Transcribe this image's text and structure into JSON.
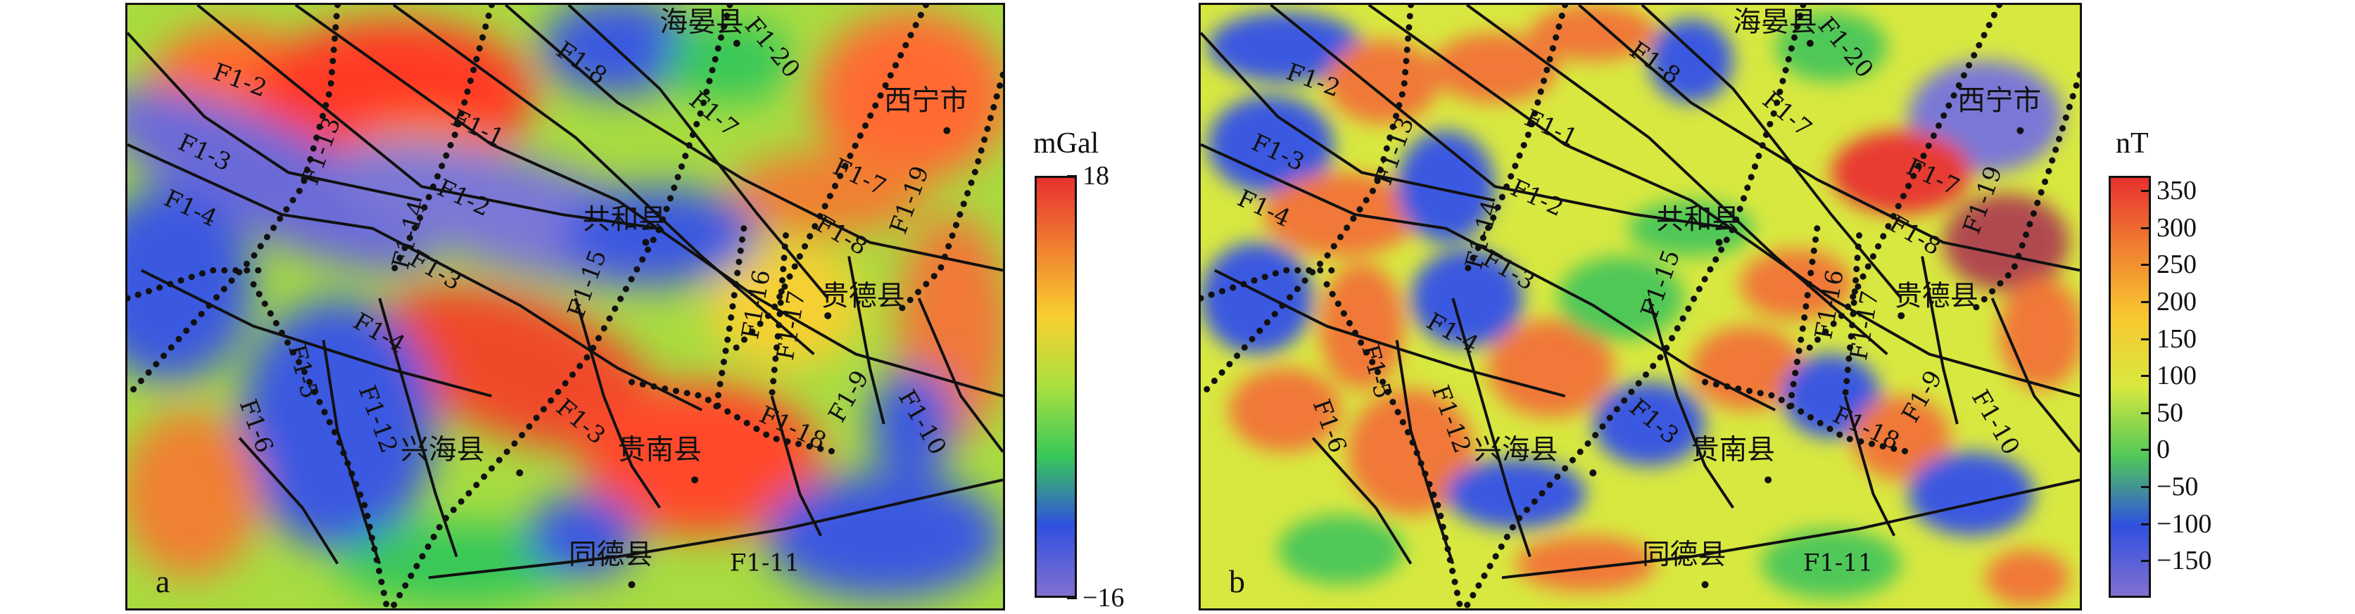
{
  "panels": [
    {
      "letter": "a",
      "labels": {
        "F1-2a": "F1-2",
        "F1-1": "F1-1",
        "F1-3": "F1-3",
        "F1-4": "F1-4",
        "F1-2b": "F1-2",
        "F1-13": "F1-13",
        "F1-14": "F1-14",
        "F1-8a": "F1-8",
        "F1-20": "F1-20",
        "F1-7a": "F1-7",
        "F1-7b": "F1-7",
        "F1-19": "F1-19",
        "F1-8b": "F1-8",
        "F1-3b": "F1-3",
        "F1-4b": "F1-4",
        "F1-15": "F1-15",
        "F1-16": "F1-16",
        "F1-17": "F1-17",
        "F1-5": "F1-5",
        "F1-6": "F1-6",
        "F1-12": "F1-12",
        "F1-3c": "F1-3",
        "F1-18": "F1-18",
        "F1-9": "F1-9",
        "F1-10": "F1-10",
        "F1-11": "F1-11"
      },
      "towns": {
        "haiyan": "海晏县",
        "xining": "西宁市",
        "gonghe": "共和县",
        "guide": "贵德县",
        "xinghai": "兴海县",
        "guinan": "贵南县",
        "tongde": "同德县"
      }
    },
    {
      "letter": "b",
      "labels": {
        "F1-2a": "F1-2",
        "F1-1": "F1-1",
        "F1-3": "F1-3",
        "F1-4": "F1-4",
        "F1-2b": "F1-2",
        "F1-13": "F1-13",
        "F1-14": "F1-14",
        "F1-8a": "F1-8",
        "F1-20": "F1-20",
        "F1-7a": "F1-7",
        "F1-7b": "F1-7",
        "F1-19": "F1-19",
        "F1-8b": "F1-8",
        "F1-3b": "F1-3",
        "F1-4b": "F1-4",
        "F1-15": "F1-15",
        "F1-16": "F1-16",
        "F1-17": "F1-17",
        "F1-5": "F1-5",
        "F1-6": "F1-6",
        "F1-12": "F1-12",
        "F1-3c": "F1-3",
        "F1-18": "F1-18",
        "F1-9": "F1-9",
        "F1-10": "F1-10",
        "F1-11": "F1-11"
      },
      "towns": {
        "haiyan": "海晏县",
        "xining": "西宁市",
        "gonghe": "共和县",
        "guide": "贵德县",
        "xinghai": "兴海县",
        "guinan": "贵南县",
        "tongde": "同德县"
      }
    }
  ],
  "colorbar_a": {
    "unit": "mGal",
    "max": 18,
    "min": -16,
    "ticks": [
      {
        "value": 18,
        "label": "18"
      },
      {
        "value": -16,
        "label": "−16"
      }
    ],
    "colors": [
      "#e83030",
      "#f08030",
      "#f8d030",
      "#a8e040",
      "#38c858",
      "#3050e0",
      "#8070d0"
    ]
  },
  "colorbar_b": {
    "unit": "nT",
    "max": 370,
    "min": -200,
    "ticks": [
      {
        "value": 350,
        "label": "350"
      },
      {
        "value": 300,
        "label": "300"
      },
      {
        "value": 250,
        "label": "250"
      },
      {
        "value": 200,
        "label": "200"
      },
      {
        "value": 150,
        "label": "150"
      },
      {
        "value": 100,
        "label": "100"
      },
      {
        "value": 50,
        "label": "50"
      },
      {
        "value": 0,
        "label": "0"
      },
      {
        "value": -50,
        "label": "−50"
      },
      {
        "value": -100,
        "label": "−100"
      },
      {
        "value": -150,
        "label": "−150"
      }
    ],
    "colors": [
      "#e83030",
      "#f08030",
      "#f8c830",
      "#d8e840",
      "#50c858",
      "#3050e0",
      "#8070d0"
    ]
  }
}
